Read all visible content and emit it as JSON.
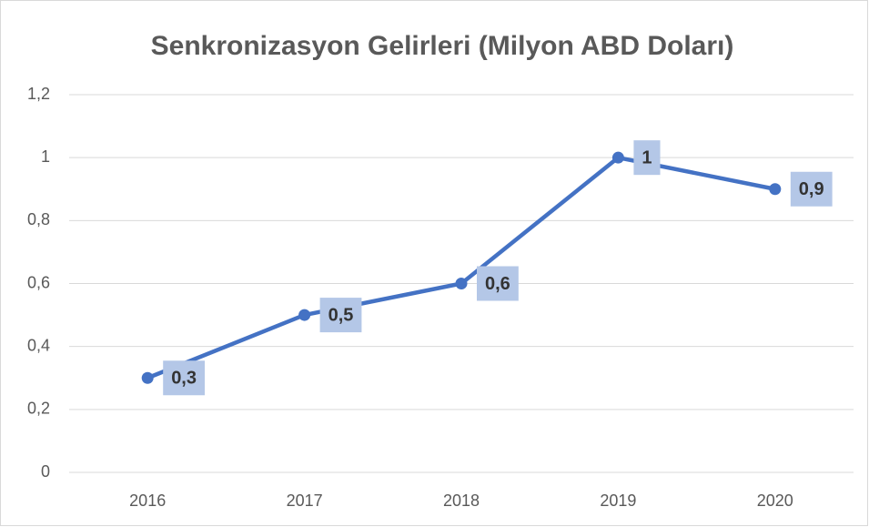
{
  "chart_data": {
    "type": "line",
    "title": "Senkronizasyon Gelirleri (Milyon ABD Doları)",
    "categories": [
      "2016",
      "2017",
      "2018",
      "2019",
      "2020"
    ],
    "series": [
      {
        "color": "#4472c4",
        "values": [
          0.3,
          0.5,
          0.6,
          1,
          0.9
        ],
        "value_labels": [
          "0,3",
          "0,5",
          "0,6",
          "1",
          "0,9"
        ]
      }
    ],
    "ylim": [
      0,
      1.2
    ],
    "yticks": [
      0,
      {
        "value": 0.2,
        "label": "0,2"
      },
      {
        "value": 0.4,
        "label": "0,4"
      },
      {
        "value": 0.6,
        "label": "0,6"
      },
      {
        "value": 0.8,
        "label": "0,8"
      },
      1,
      {
        "value": 1.2,
        "label": "1,2"
      }
    ],
    "grid": true
  }
}
